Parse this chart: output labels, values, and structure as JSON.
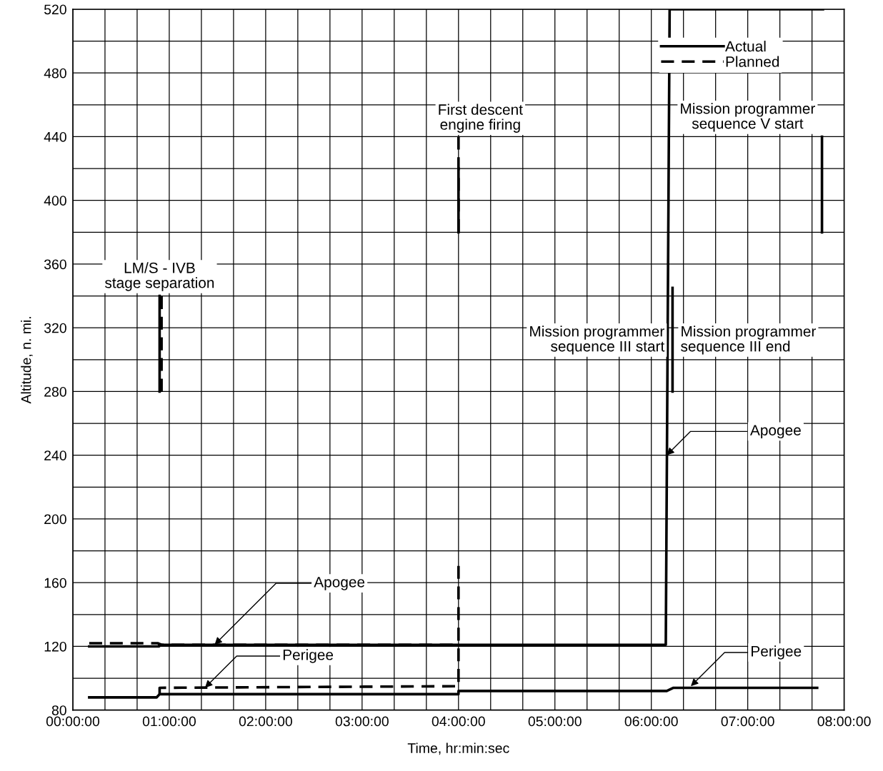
{
  "chart_data": {
    "type": "line",
    "xlabel": "Time, hr:min:sec",
    "ylabel": "Altitude, n. mi.",
    "xlim": [
      0,
      8
    ],
    "ylim": [
      80,
      520
    ],
    "xticks": [
      {
        "value": 0,
        "label": "00:00:00"
      },
      {
        "value": 0.3333,
        "label": null
      },
      {
        "value": 0.6667,
        "label": null
      },
      {
        "value": 1,
        "label": "01:00:00"
      },
      {
        "value": 1.3333,
        "label": null
      },
      {
        "value": 1.6667,
        "label": null
      },
      {
        "value": 2,
        "label": "02:00:00"
      },
      {
        "value": 2.3333,
        "label": null
      },
      {
        "value": 2.6667,
        "label": null
      },
      {
        "value": 3,
        "label": "03:00:00"
      },
      {
        "value": 3.3333,
        "label": null
      },
      {
        "value": 3.6667,
        "label": null
      },
      {
        "value": 4,
        "label": "04:00:00"
      },
      {
        "value": 4.3333,
        "label": null
      },
      {
        "value": 4.6667,
        "label": null
      },
      {
        "value": 5,
        "label": "05:00:00"
      },
      {
        "value": 5.3333,
        "label": null
      },
      {
        "value": 5.6667,
        "label": null
      },
      {
        "value": 6,
        "label": "06:00:00"
      },
      {
        "value": 6.3333,
        "label": null
      },
      {
        "value": 6.6667,
        "label": null
      },
      {
        "value": 7,
        "label": "07:00:00"
      },
      {
        "value": 7.3333,
        "label": null
      },
      {
        "value": 7.6667,
        "label": null
      },
      {
        "value": 8,
        "label": "08:00:00"
      }
    ],
    "yticks": [
      80,
      {
        "value": 100,
        "label": null
      },
      120,
      {
        "value": 140,
        "label": null
      },
      160,
      {
        "value": 180,
        "label": null
      },
      200,
      {
        "value": 220,
        "label": null
      },
      240,
      {
        "value": 260,
        "label": null
      },
      280,
      {
        "value": 300,
        "label": null
      },
      320,
      {
        "value": 340,
        "label": null
      },
      360,
      {
        "value": 380,
        "label": null
      },
      400,
      {
        "value": 420,
        "label": null
      },
      440,
      {
        "value": 460,
        "label": null
      },
      480,
      {
        "value": 500,
        "label": null
      },
      520
    ],
    "grid": true,
    "legend": "top right",
    "series": [
      {
        "name": "Actual",
        "color": "#000000",
        "line_style": "solid",
        "x": [
          0.17,
          0.895,
          0.895,
          6.15,
          6.19,
          7.78
        ],
        "values": [
          120,
          120,
          121,
          121,
          520,
          520
        ]
      },
      {
        "name": "Planned",
        "color": "#000000",
        "line_style": "dashed",
        "x": [
          0.17,
          0.88,
          0.92,
          4.0
        ],
        "values": [
          122,
          122,
          121,
          121
        ]
      },
      {
        "color": "#000000",
        "line_style": "solid",
        "x": [
          0.17,
          0.87,
          0.9,
          4.0,
          4.0,
          6.16,
          6.23,
          7.72
        ],
        "values": [
          88,
          88,
          90,
          90,
          92,
          92,
          94,
          94
        ]
      },
      {
        "color": "#000000",
        "line_style": "dashed",
        "x": [
          0.9,
          0.9,
          4.0,
          4.0
        ],
        "values": [
          90,
          94,
          95,
          172
        ]
      },
      {
        "color": "#000000",
        "line_style": "solid",
        "x": [
          0.9,
          0.9
        ],
        "values": [
          280,
          340
        ]
      },
      {
        "color": "#000000",
        "line_style": "dashed",
        "x": [
          0.92,
          0.92
        ],
        "values": [
          280,
          340
        ]
      },
      {
        "color": "#000000",
        "line_style": "dashed",
        "x": [
          4.0,
          4.0
        ],
        "values": [
          440,
          380
        ]
      },
      {
        "color": "#000000",
        "line_style": "solid",
        "x": [
          4.0,
          4.0
        ],
        "values": [
          420,
          380
        ]
      },
      {
        "color": "#000000",
        "line_style": "solid",
        "x": [
          6.22,
          6.22
        ],
        "values": [
          280,
          345
        ]
      },
      {
        "color": "#000000",
        "line_style": "solid",
        "x": [
          7.77,
          7.77
        ],
        "values": [
          440,
          380
        ]
      }
    ],
    "annotations": [
      {
        "text": "LM/S - IVB\nstage separation",
        "x": 0.9,
        "y": 340
      },
      {
        "text": "First descent\nengine firing",
        "x": 4.0,
        "y": 440
      },
      {
        "text": "Mission programmer\nsequence III start",
        "x": 6.22,
        "y": 340
      },
      {
        "text": "Mission programmer\nsequence III end",
        "x": 6.22,
        "y": 340
      },
      {
        "text": "Mission programmer\nsequence V start",
        "x": 7.77,
        "y": 440
      },
      {
        "text": "Apogee",
        "x": 1.47,
        "y": 121
      },
      {
        "text": "Perigee",
        "x": 1.37,
        "y": 94
      },
      {
        "text": "Apogee",
        "x": 6.16,
        "y": 240
      },
      {
        "text": "Perigee",
        "x": 6.41,
        "y": 95
      }
    ]
  }
}
